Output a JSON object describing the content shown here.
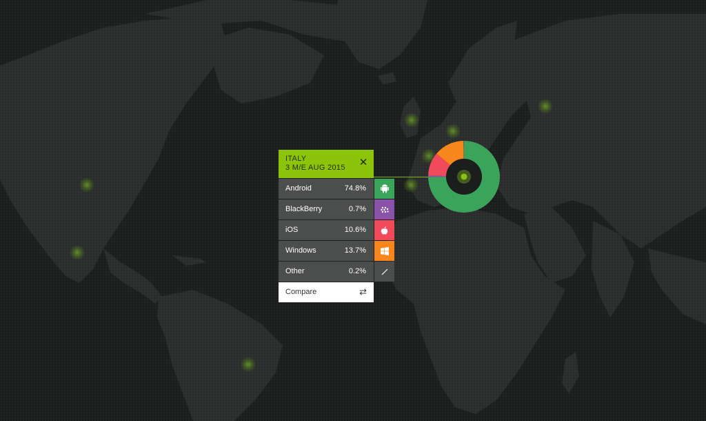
{
  "panel": {
    "country": "ITALY",
    "period": "3 M/E AUG 2015",
    "close_icon": "close-icon",
    "rows": [
      {
        "label": "Android",
        "value": "74.8%",
        "share": 74.8,
        "icon": "android-icon",
        "color": "#3aa55a"
      },
      {
        "label": "BlackBerry",
        "value": "0.7%",
        "share": 0.7,
        "icon": "blackberry-icon",
        "color": "#8a52a8"
      },
      {
        "label": "iOS",
        "value": "10.6%",
        "share": 10.6,
        "icon": "apple-icon",
        "color": "#f04a5b"
      },
      {
        "label": "Windows",
        "value": "13.7%",
        "share": 13.7,
        "icon": "windows-icon",
        "color": "#f7861c"
      },
      {
        "label": "Other",
        "value": "0.2%",
        "share": 0.2,
        "icon": "other-icon",
        "color": "#4c4d4d"
      }
    ],
    "compare_label": "Compare",
    "compare_icon": "swap-arrows-icon"
  },
  "colors": {
    "accent": "#8bc40a",
    "background": "#1c1d1d",
    "land": "#2b2c2c",
    "row": "#4c4d4d"
  }
}
